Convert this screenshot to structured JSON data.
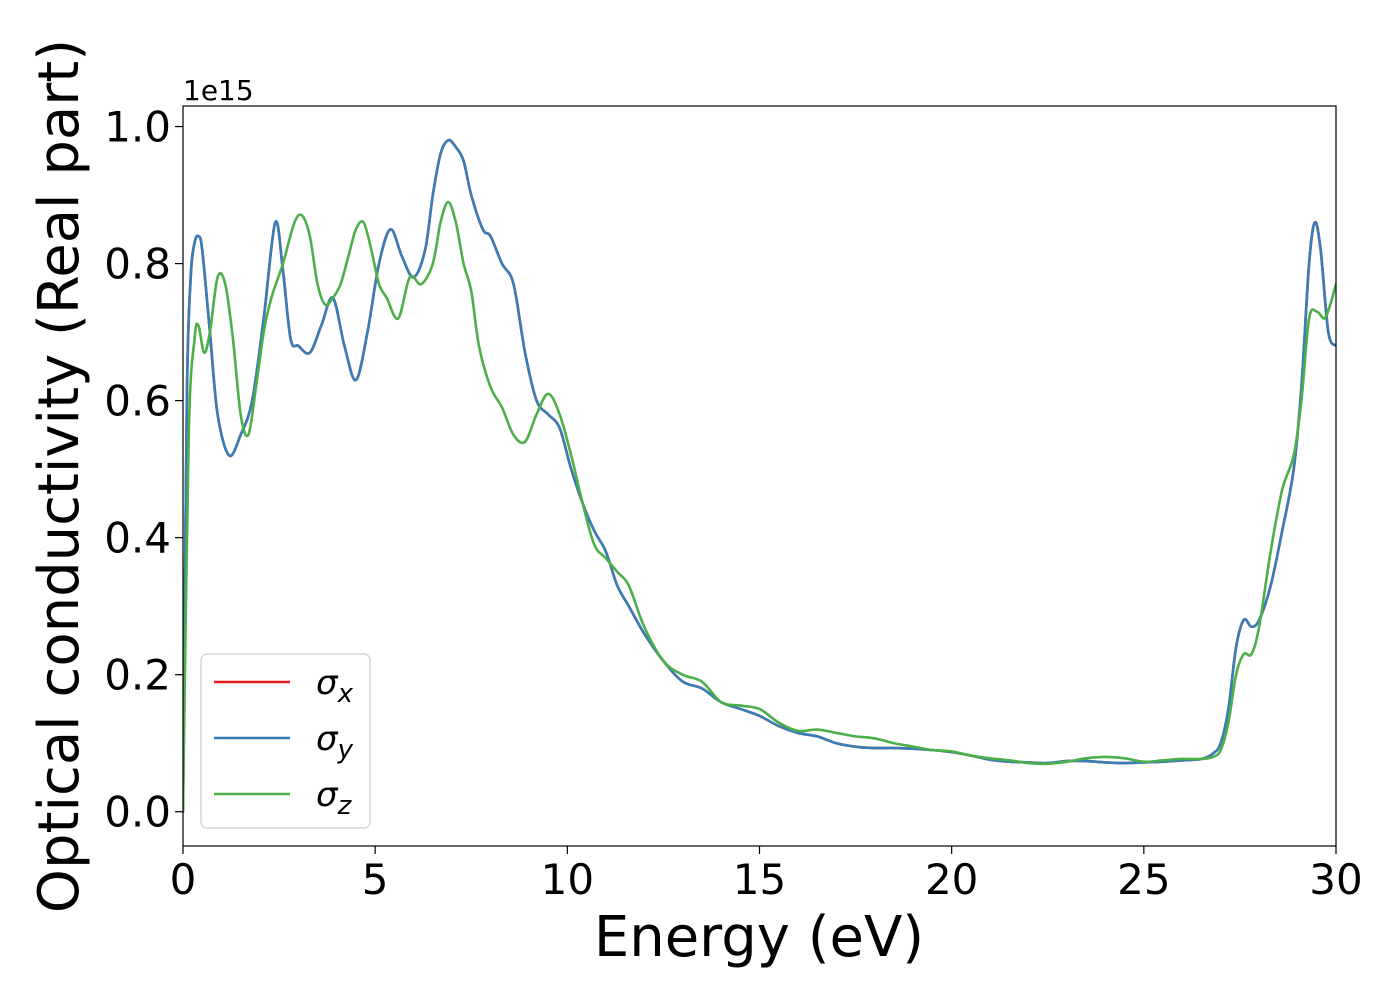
{
  "chart_data": {
    "type": "line",
    "xlabel": "Energy (eV)",
    "ylabel": "Optical conductivity (Real part)",
    "offset_label": "1e15",
    "xlim": [
      0,
      30
    ],
    "ylim": [
      -0.05,
      1.03
    ],
    "xticks": [
      0,
      5,
      10,
      15,
      20,
      25,
      30
    ],
    "xtick_labels": [
      "0",
      "5",
      "10",
      "15",
      "20",
      "25",
      "30"
    ],
    "yticks": [
      0.0,
      0.2,
      0.4,
      0.6,
      0.8,
      1.0
    ],
    "ytick_labels": [
      "0.0",
      "0.2",
      "0.4",
      "0.6",
      "0.8",
      "1.0"
    ],
    "grid": false,
    "legend_position": "lower-left",
    "series": [
      {
        "name": "σx",
        "color": "#e41a1c",
        "x": [
          0,
          0.1,
          0.2,
          0.3,
          0.4,
          0.5,
          0.7,
          0.9,
          1.2,
          1.5,
          1.8,
          2.1,
          2.4,
          2.6,
          2.8,
          3.0,
          3.3,
          3.6,
          3.9,
          4.2,
          4.5,
          4.8,
          5.1,
          5.4,
          5.7,
          6.0,
          6.3,
          6.5,
          6.7,
          6.9,
          7.1,
          7.3,
          7.5,
          7.8,
          8.0,
          8.3,
          8.6,
          8.9,
          9.2,
          9.5,
          9.8,
          10.1,
          10.4,
          10.7,
          11.0,
          11.3,
          11.6,
          12.0,
          12.5,
          13.0,
          13.5,
          14.0,
          14.5,
          15.0,
          15.5,
          16.0,
          16.5,
          17.0,
          17.5,
          18.0,
          18.5,
          19.0,
          19.5,
          20.0,
          20.5,
          21.0,
          21.5,
          22.0,
          22.5,
          23.0,
          23.5,
          24.0,
          24.5,
          25.0,
          25.5,
          26.0,
          26.5,
          26.8,
          27.0,
          27.2,
          27.4,
          27.6,
          27.8,
          28.0,
          28.3,
          28.6,
          28.9,
          29.1,
          29.3,
          29.45,
          29.6,
          29.8,
          30.0
        ],
        "y": [
          0.0,
          0.6,
          0.78,
          0.83,
          0.84,
          0.82,
          0.7,
          0.58,
          0.52,
          0.55,
          0.6,
          0.72,
          0.86,
          0.79,
          0.69,
          0.68,
          0.67,
          0.71,
          0.75,
          0.68,
          0.63,
          0.7,
          0.8,
          0.85,
          0.81,
          0.78,
          0.82,
          0.9,
          0.96,
          0.98,
          0.97,
          0.95,
          0.9,
          0.85,
          0.84,
          0.8,
          0.77,
          0.67,
          0.6,
          0.58,
          0.56,
          0.5,
          0.45,
          0.41,
          0.38,
          0.33,
          0.3,
          0.26,
          0.22,
          0.19,
          0.18,
          0.16,
          0.15,
          0.14,
          0.125,
          0.115,
          0.11,
          0.1,
          0.095,
          0.093,
          0.093,
          0.092,
          0.09,
          0.087,
          0.082,
          0.076,
          0.073,
          0.072,
          0.071,
          0.074,
          0.074,
          0.072,
          0.071,
          0.072,
          0.073,
          0.075,
          0.077,
          0.085,
          0.1,
          0.15,
          0.24,
          0.28,
          0.27,
          0.28,
          0.33,
          0.41,
          0.5,
          0.62,
          0.8,
          0.86,
          0.82,
          0.7,
          0.68
        ]
      },
      {
        "name": "σy",
        "color": "#377eb8",
        "x": [
          0,
          0.1,
          0.2,
          0.3,
          0.4,
          0.5,
          0.7,
          0.9,
          1.2,
          1.5,
          1.8,
          2.1,
          2.4,
          2.6,
          2.8,
          3.0,
          3.3,
          3.6,
          3.9,
          4.2,
          4.5,
          4.8,
          5.1,
          5.4,
          5.7,
          6.0,
          6.3,
          6.5,
          6.7,
          6.9,
          7.1,
          7.3,
          7.5,
          7.8,
          8.0,
          8.3,
          8.6,
          8.9,
          9.2,
          9.5,
          9.8,
          10.1,
          10.4,
          10.7,
          11.0,
          11.3,
          11.6,
          12.0,
          12.5,
          13.0,
          13.5,
          14.0,
          14.5,
          15.0,
          15.5,
          16.0,
          16.5,
          17.0,
          17.5,
          18.0,
          18.5,
          19.0,
          19.5,
          20.0,
          20.5,
          21.0,
          21.5,
          22.0,
          22.5,
          23.0,
          23.5,
          24.0,
          24.5,
          25.0,
          25.5,
          26.0,
          26.5,
          26.8,
          27.0,
          27.2,
          27.4,
          27.6,
          27.8,
          28.0,
          28.3,
          28.6,
          28.9,
          29.1,
          29.3,
          29.45,
          29.6,
          29.8,
          30.0
        ],
        "y": [
          0.0,
          0.6,
          0.78,
          0.83,
          0.84,
          0.82,
          0.7,
          0.58,
          0.52,
          0.55,
          0.6,
          0.72,
          0.86,
          0.79,
          0.69,
          0.68,
          0.67,
          0.71,
          0.75,
          0.68,
          0.63,
          0.7,
          0.8,
          0.85,
          0.81,
          0.78,
          0.82,
          0.9,
          0.96,
          0.98,
          0.97,
          0.95,
          0.9,
          0.85,
          0.84,
          0.8,
          0.77,
          0.67,
          0.6,
          0.58,
          0.56,
          0.5,
          0.45,
          0.41,
          0.38,
          0.33,
          0.3,
          0.26,
          0.22,
          0.19,
          0.18,
          0.16,
          0.15,
          0.14,
          0.125,
          0.115,
          0.11,
          0.1,
          0.095,
          0.093,
          0.093,
          0.092,
          0.09,
          0.087,
          0.082,
          0.076,
          0.073,
          0.072,
          0.071,
          0.074,
          0.074,
          0.072,
          0.071,
          0.072,
          0.073,
          0.075,
          0.077,
          0.085,
          0.1,
          0.15,
          0.24,
          0.28,
          0.27,
          0.28,
          0.33,
          0.41,
          0.5,
          0.62,
          0.8,
          0.86,
          0.82,
          0.7,
          0.68
        ]
      },
      {
        "name": "σz",
        "color": "#4daf4a",
        "x": [
          0,
          0.15,
          0.3,
          0.4,
          0.55,
          0.7,
          0.9,
          1.1,
          1.3,
          1.5,
          1.7,
          1.9,
          2.1,
          2.3,
          2.6,
          2.9,
          3.1,
          3.3,
          3.5,
          3.7,
          3.9,
          4.1,
          4.3,
          4.5,
          4.7,
          4.9,
          5.1,
          5.3,
          5.6,
          5.9,
          6.2,
          6.5,
          6.7,
          6.9,
          7.1,
          7.3,
          7.5,
          7.7,
          8.0,
          8.3,
          8.6,
          8.9,
          9.2,
          9.5,
          9.8,
          10.1,
          10.4,
          10.7,
          11.0,
          11.3,
          11.6,
          12.0,
          12.5,
          13.0,
          13.5,
          14.0,
          14.5,
          15.0,
          15.5,
          16.0,
          16.5,
          17.0,
          17.5,
          18.0,
          18.5,
          19.0,
          19.5,
          20.0,
          20.5,
          21.0,
          21.5,
          22.0,
          22.5,
          23.0,
          23.5,
          24.0,
          24.5,
          25.0,
          25.5,
          26.0,
          26.5,
          26.8,
          27.0,
          27.2,
          27.4,
          27.6,
          27.8,
          28.0,
          28.3,
          28.6,
          28.9,
          29.1,
          29.3,
          29.5,
          29.7,
          29.85,
          30.0
        ],
        "y": [
          0.0,
          0.55,
          0.69,
          0.71,
          0.67,
          0.7,
          0.78,
          0.77,
          0.69,
          0.58,
          0.55,
          0.62,
          0.7,
          0.75,
          0.8,
          0.86,
          0.87,
          0.84,
          0.77,
          0.74,
          0.75,
          0.77,
          0.81,
          0.85,
          0.86,
          0.82,
          0.77,
          0.75,
          0.72,
          0.78,
          0.77,
          0.8,
          0.86,
          0.89,
          0.86,
          0.8,
          0.76,
          0.68,
          0.62,
          0.59,
          0.55,
          0.54,
          0.58,
          0.61,
          0.58,
          0.52,
          0.45,
          0.39,
          0.37,
          0.35,
          0.33,
          0.27,
          0.22,
          0.2,
          0.19,
          0.16,
          0.155,
          0.15,
          0.13,
          0.118,
          0.12,
          0.115,
          0.11,
          0.107,
          0.1,
          0.095,
          0.09,
          0.088,
          0.082,
          0.078,
          0.075,
          0.071,
          0.07,
          0.073,
          0.078,
          0.08,
          0.078,
          0.073,
          0.075,
          0.077,
          0.077,
          0.08,
          0.09,
          0.13,
          0.2,
          0.23,
          0.23,
          0.27,
          0.38,
          0.47,
          0.52,
          0.6,
          0.72,
          0.73,
          0.72,
          0.74,
          0.77
        ]
      }
    ]
  }
}
